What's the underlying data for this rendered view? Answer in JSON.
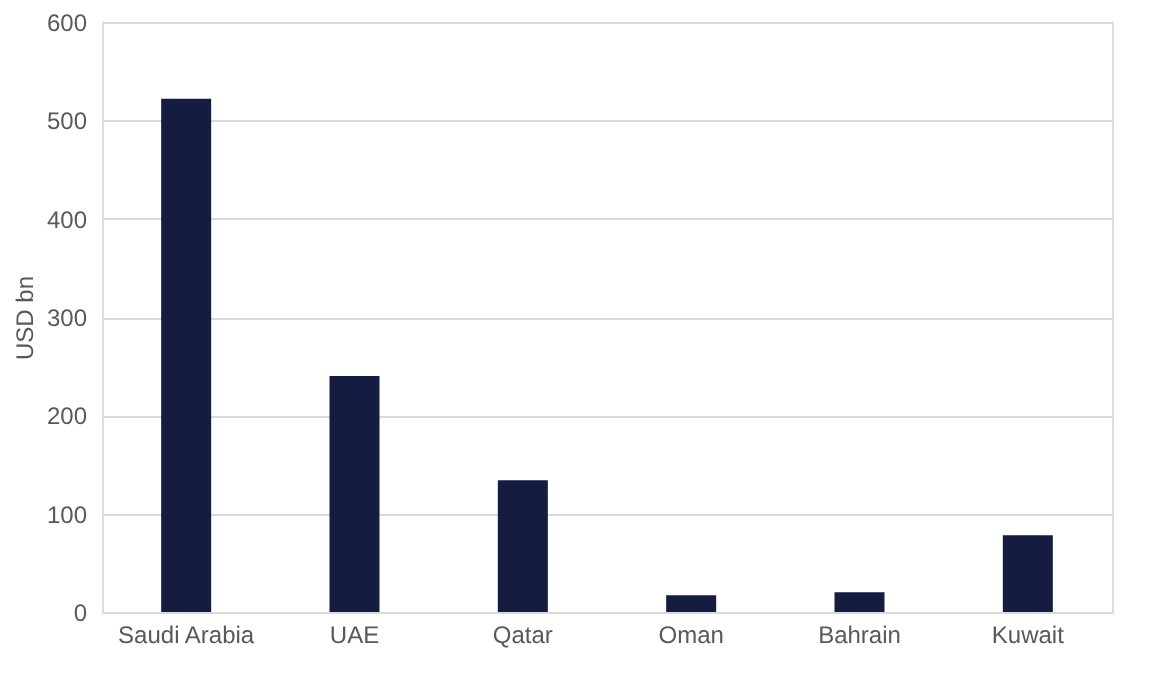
{
  "chart_data": {
    "type": "bar",
    "ylabel": "USD bn",
    "categories": [
      "Saudi Arabia",
      "UAE",
      "Qatar",
      "Oman",
      "Bahrain",
      "Kuwait"
    ],
    "values": [
      522,
      240,
      134,
      17,
      20,
      78
    ],
    "color": "#141c42",
    "ylim": [
      0,
      600
    ],
    "yticks": [
      0,
      100,
      200,
      300,
      400,
      500,
      600
    ],
    "grid": "y"
  }
}
